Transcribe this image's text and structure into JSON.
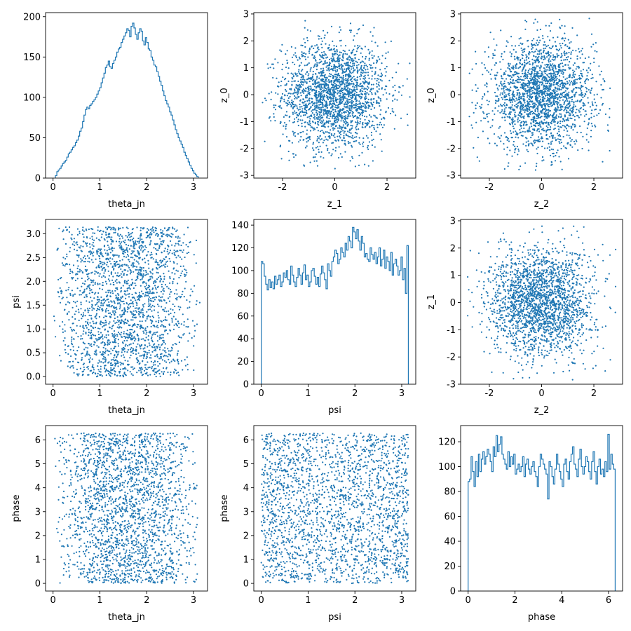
{
  "colors": {
    "series": "#1f77b4",
    "axis": "#000000",
    "background": "#ffffff"
  },
  "chart_data": [
    {
      "id": "hist-theta_jn",
      "type": "step-histogram",
      "xlabel": "theta_jn",
      "ylabel": "",
      "xlim": [
        -0.16,
        3.3
      ],
      "ylim": [
        0,
        205
      ],
      "xticks": [
        0,
        1,
        2,
        3
      ],
      "yticks": [
        0,
        50,
        100,
        150,
        200
      ],
      "bin_range": [
        0.05,
        3.1
      ],
      "bins": 100,
      "counts": [
        3,
        8,
        10,
        12,
        15,
        18,
        20,
        22,
        26,
        30,
        32,
        35,
        38,
        40,
        44,
        47,
        52,
        58,
        62,
        70,
        78,
        85,
        88,
        86,
        90,
        92,
        95,
        97,
        100,
        104,
        108,
        112,
        118,
        124,
        130,
        137,
        140,
        145,
        138,
        136,
        142,
        146,
        150,
        156,
        160,
        162,
        168,
        172,
        176,
        180,
        185,
        183,
        175,
        188,
        192,
        186,
        178,
        172,
        180,
        185,
        182,
        170,
        165,
        174,
        168,
        160,
        158,
        150,
        146,
        140,
        138,
        132,
        126,
        120,
        115,
        108,
        102,
        96,
        92,
        88,
        82,
        78,
        72,
        66,
        60,
        55,
        50,
        46,
        42,
        38,
        32,
        28,
        24,
        20,
        16,
        12,
        9,
        6,
        4,
        2
      ]
    },
    {
      "id": "scatter-z1-z0",
      "type": "scatter",
      "xlabel": "z_1",
      "ylabel": "z_0",
      "xlim": [
        -3.1,
        3.1
      ],
      "ylim": [
        -3.1,
        3.05
      ],
      "xticks": [
        -2,
        0,
        2
      ],
      "yticks": [
        -3,
        -2,
        -1,
        0,
        1,
        2,
        3
      ],
      "sample_distribution": "bivariate-normal-like, center (0,0), sd 1, n=10000",
      "point_count": 2200
    },
    {
      "id": "scatter-z2-z0",
      "type": "scatter",
      "xlabel": "z_2",
      "ylabel": "z_0",
      "xlim": [
        -3.1,
        3.1
      ],
      "ylim": [
        -3.1,
        3.05
      ],
      "xticks": [
        -2,
        0,
        2
      ],
      "yticks": [
        -3,
        -2,
        -1,
        0,
        1,
        2,
        3
      ],
      "sample_distribution": "bivariate-normal-like, center (0,0), sd 1, n=10000",
      "point_count": 2200
    },
    {
      "id": "scatter-theta_jn-psi",
      "type": "scatter",
      "xlabel": "theta_jn",
      "ylabel": "psi",
      "xlim": [
        -0.16,
        3.3
      ],
      "ylim": [
        -0.16,
        3.3
      ],
      "xticks": [
        0,
        1,
        2,
        3
      ],
      "yticks": [
        0.0,
        0.5,
        1.0,
        1.5,
        2.0,
        2.5,
        3.0
      ],
      "ytick_labels": [
        "0.0",
        "0.5",
        "1.0",
        "1.5",
        "2.0",
        "2.5",
        "3.0"
      ],
      "sample_distribution": "x ~ sin-shaped over [0, pi], y uniform over [0, pi], n=10000",
      "point_count": 2200
    },
    {
      "id": "hist-psi",
      "type": "step-histogram",
      "xlabel": "psi",
      "ylabel": "",
      "xlim": [
        -0.16,
        3.3
      ],
      "ylim": [
        0,
        145
      ],
      "xticks": [
        0,
        1,
        2,
        3
      ],
      "yticks": [
        0,
        20,
        40,
        60,
        80,
        100,
        120,
        140
      ],
      "bin_range": [
        0,
        3.1416
      ],
      "bins": 100,
      "counts": [
        108,
        106,
        95,
        88,
        83,
        92,
        85,
        90,
        84,
        95,
        88,
        92,
        96,
        86,
        90,
        98,
        94,
        100,
        92,
        88,
        104,
        96,
        90,
        86,
        94,
        102,
        96,
        88,
        98,
        105,
        92,
        96,
        86,
        90,
        100,
        102,
        95,
        88,
        94,
        86,
        97,
        104,
        98,
        92,
        84,
        106,
        100,
        95,
        108,
        112,
        118,
        115,
        106,
        110,
        120,
        116,
        112,
        124,
        118,
        130,
        126,
        120,
        138,
        134,
        128,
        136,
        126,
        118,
        130,
        124,
        112,
        115,
        110,
        108,
        120,
        114,
        110,
        116,
        106,
        112,
        120,
        104,
        110,
        118,
        102,
        112,
        108,
        100,
        116,
        96,
        106,
        110,
        104,
        96,
        100,
        112,
        92,
        102,
        80,
        122
      ]
    },
    {
      "id": "scatter-z2-z1",
      "type": "scatter",
      "xlabel": "z_2",
      "ylabel": "z_1",
      "xlim": [
        -3.1,
        3.1
      ],
      "ylim": [
        -3.0,
        3.05
      ],
      "xticks": [
        -2,
        0,
        2
      ],
      "yticks": [
        -3,
        -2,
        -1,
        0,
        1,
        2,
        3
      ],
      "sample_distribution": "bivariate-normal-like, center (0,0), sd 1, n=10000",
      "point_count": 2200
    },
    {
      "id": "scatter-theta_jn-phase",
      "type": "scatter",
      "xlabel": "theta_jn",
      "ylabel": "phase",
      "xlim": [
        -0.16,
        3.3
      ],
      "ylim": [
        -0.32,
        6.6
      ],
      "xticks": [
        0,
        1,
        2,
        3
      ],
      "yticks": [
        0,
        1,
        2,
        3,
        4,
        5,
        6
      ],
      "sample_distribution": "x ~ sin-shaped over [0, pi], y uniform over [0, 2pi], n=10000",
      "point_count": 2200
    },
    {
      "id": "scatter-psi-phase",
      "type": "scatter",
      "xlabel": "psi",
      "ylabel": "phase",
      "xlim": [
        -0.16,
        3.3
      ],
      "ylim": [
        -0.32,
        6.6
      ],
      "xticks": [
        0,
        1,
        2,
        3
      ],
      "yticks": [
        0,
        1,
        2,
        3,
        4,
        5,
        6
      ],
      "sample_distribution": "x uniform over [0, pi], y uniform over [0, 2pi], n=10000",
      "point_count": 2200
    },
    {
      "id": "hist-phase",
      "type": "step-histogram",
      "xlabel": "phase",
      "ylabel": "",
      "xlim": [
        -0.32,
        6.6
      ],
      "ylim": [
        0,
        133
      ],
      "xticks": [
        0,
        2,
        4,
        6
      ],
      "yticks": [
        0,
        20,
        40,
        60,
        80,
        100,
        120
      ],
      "bin_range": [
        0,
        6.2832
      ],
      "bins": 100,
      "counts": [
        88,
        90,
        108,
        96,
        84,
        104,
        92,
        110,
        96,
        106,
        112,
        102,
        108,
        114,
        110,
        104,
        96,
        116,
        108,
        125,
        112,
        118,
        124,
        110,
        106,
        102,
        98,
        112,
        100,
        108,
        102,
        110,
        94,
        98,
        102,
        96,
        100,
        108,
        92,
        102,
        106,
        98,
        94,
        100,
        104,
        96,
        92,
        84,
        100,
        110,
        106,
        102,
        98,
        94,
        74,
        104,
        100,
        92,
        86,
        98,
        110,
        102,
        96,
        90,
        84,
        102,
        106,
        96,
        90,
        104,
        110,
        116,
        102,
        98,
        92,
        106,
        114,
        100,
        94,
        100,
        108,
        104,
        96,
        90,
        104,
        112,
        96,
        86,
        100,
        106,
        94,
        98,
        92,
        104,
        96,
        126,
        98,
        110,
        102,
        98
      ]
    }
  ]
}
